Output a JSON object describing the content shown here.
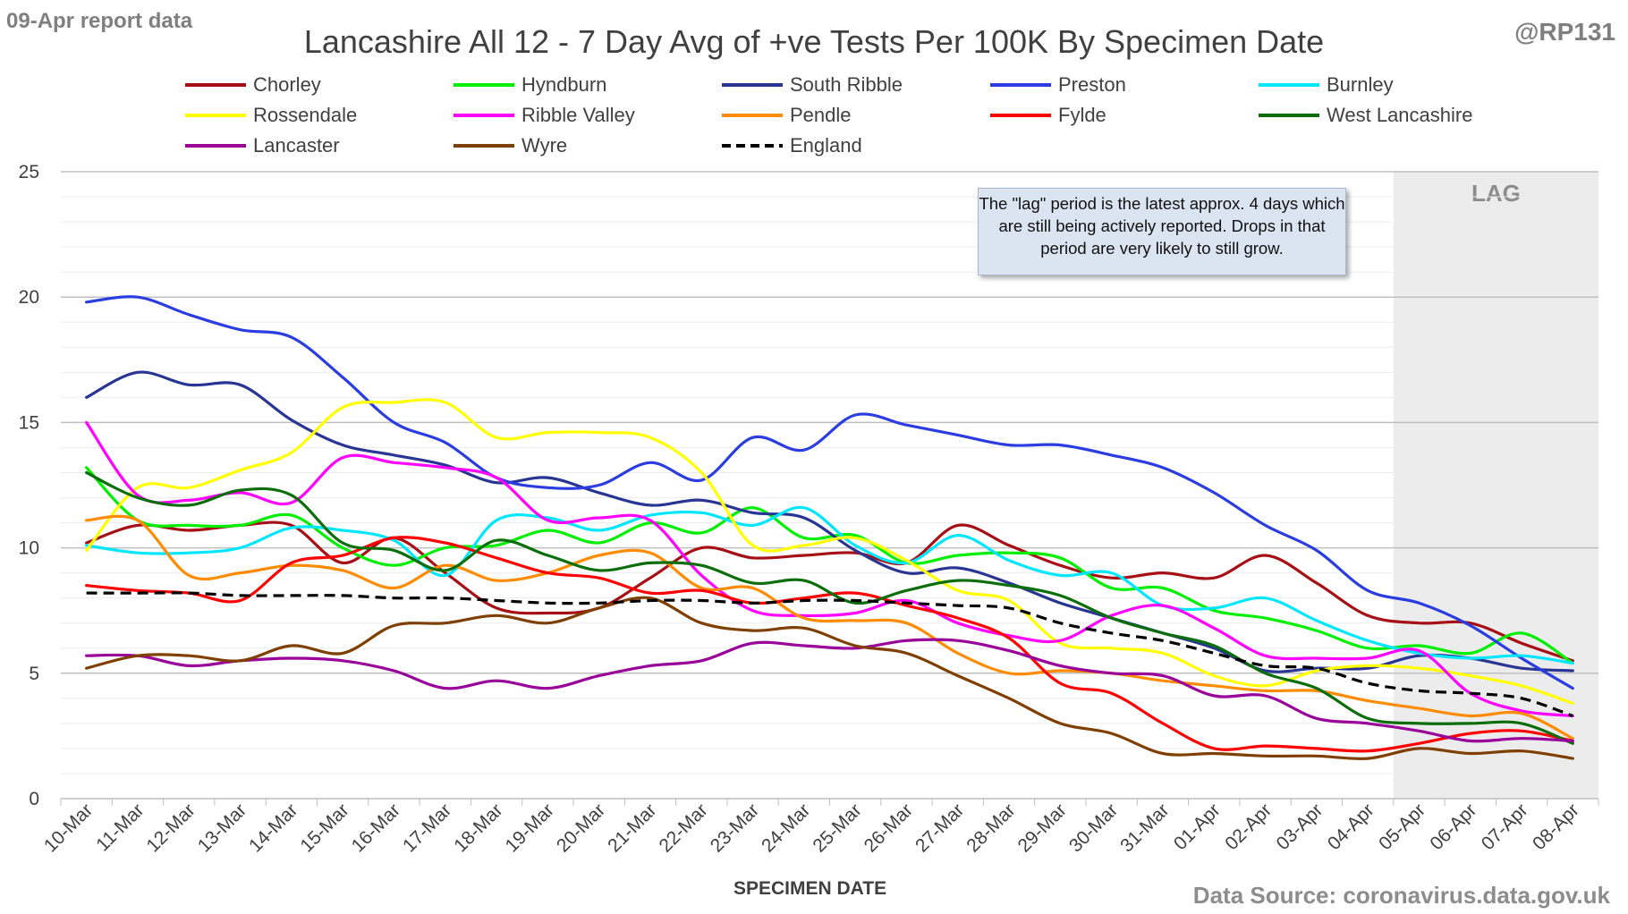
{
  "header": {
    "report_date": "09-Apr report data",
    "handle": "@RP131",
    "title": "Lancashire All 12 - 7 Day Avg of +ve Tests Per 100K By Specimen Date",
    "source": "Data Source: coronavirus.data.gov.uk"
  },
  "annotation": {
    "note": "The \"lag\" period is the latest approx. 4 days which are still being actively reported.  Drops in that period are very likely to still grow.",
    "lag_label": "LAG"
  },
  "chart_data": {
    "type": "line",
    "title": "Lancashire All 12 - 7 Day Avg of +ve Tests Per 100K By Specimen Date",
    "xlabel": "SPECIMEN DATE",
    "ylabel": "",
    "ylim": [
      0,
      25
    ],
    "yticks": [
      0,
      5,
      10,
      15,
      20,
      25
    ],
    "grid": true,
    "legend_position": "top",
    "lag_start": "05-Apr",
    "categories": [
      "10-Mar",
      "11-Mar",
      "12-Mar",
      "13-Mar",
      "14-Mar",
      "15-Mar",
      "16-Mar",
      "17-Mar",
      "18-Mar",
      "19-Mar",
      "20-Mar",
      "21-Mar",
      "22-Mar",
      "23-Mar",
      "24-Mar",
      "25-Mar",
      "26-Mar",
      "27-Mar",
      "28-Mar",
      "29-Mar",
      "30-Mar",
      "31-Mar",
      "01-Apr",
      "02-Apr",
      "03-Apr",
      "04-Apr",
      "05-Apr",
      "06-Apr",
      "07-Apr",
      "08-Apr"
    ],
    "series": [
      {
        "name": "Chorley",
        "color": "#a50f15",
        "dashed": false,
        "values": [
          10.2,
          10.9,
          10.7,
          10.9,
          10.9,
          9.4,
          10.4,
          9.0,
          7.6,
          7.4,
          7.6,
          8.8,
          10.0,
          9.6,
          9.7,
          9.8,
          9.4,
          10.9,
          10.1,
          9.3,
          8.8,
          9.0,
          8.8,
          9.7,
          8.6,
          7.3,
          7.0,
          7.0,
          6.2,
          5.5
        ]
      },
      {
        "name": "Hyndburn",
        "color": "#00ee00",
        "dashed": false,
        "values": [
          13.2,
          11.1,
          10.9,
          10.9,
          11.3,
          10.0,
          9.3,
          10.0,
          10.1,
          10.7,
          10.2,
          11.0,
          10.6,
          11.6,
          10.4,
          10.5,
          9.4,
          9.7,
          9.8,
          9.6,
          8.4,
          8.4,
          7.5,
          7.2,
          6.7,
          6.0,
          6.1,
          5.8,
          6.6,
          5.4
        ]
      },
      {
        "name": "South Ribble",
        "color": "#283593",
        "dashed": false,
        "values": [
          16.0,
          17.0,
          16.5,
          16.5,
          15.1,
          14.1,
          13.7,
          13.3,
          12.6,
          12.8,
          12.2,
          11.7,
          11.9,
          11.4,
          11.2,
          9.9,
          9.0,
          9.2,
          8.6,
          7.8,
          7.2,
          6.6,
          6.0,
          5.1,
          5.2,
          5.2,
          5.7,
          5.6,
          5.2,
          5.1
        ]
      },
      {
        "name": "Preston",
        "color": "#2b3de0",
        "dashed": false,
        "values": [
          19.8,
          20.0,
          19.3,
          18.7,
          18.4,
          16.8,
          15.0,
          14.2,
          12.8,
          12.4,
          12.5,
          13.4,
          12.7,
          14.4,
          13.9,
          15.3,
          14.9,
          14.5,
          14.1,
          14.1,
          13.7,
          13.2,
          12.2,
          10.9,
          9.9,
          8.3,
          7.8,
          6.9,
          5.6,
          4.4
        ]
      },
      {
        "name": "Burnley",
        "color": "#00e6ff",
        "dashed": false,
        "values": [
          10.1,
          9.8,
          9.8,
          10.0,
          10.8,
          10.7,
          10.3,
          8.9,
          11.1,
          11.2,
          10.7,
          11.3,
          11.4,
          10.9,
          11.6,
          10.1,
          9.4,
          10.5,
          9.5,
          8.9,
          9.0,
          7.7,
          7.6,
          8.0,
          7.1,
          6.3,
          5.8,
          5.6,
          5.7,
          5.4
        ]
      },
      {
        "name": "Rossendale",
        "color": "#ffff00",
        "dashed": false,
        "values": [
          9.9,
          12.4,
          12.4,
          13.1,
          13.8,
          15.6,
          15.8,
          15.8,
          14.4,
          14.6,
          14.6,
          14.4,
          13.0,
          10.1,
          10.1,
          10.4,
          9.5,
          8.3,
          7.9,
          6.2,
          6.0,
          5.8,
          4.9,
          4.5,
          5.1,
          5.3,
          5.2,
          4.9,
          4.5,
          3.8
        ]
      },
      {
        "name": "Ribble Valley",
        "color": "#ff00ff",
        "dashed": false,
        "values": [
          15.0,
          12.1,
          11.9,
          12.2,
          11.8,
          13.6,
          13.4,
          13.2,
          12.8,
          11.1,
          11.2,
          11.1,
          8.9,
          7.5,
          7.3,
          7.4,
          7.9,
          7.0,
          6.5,
          6.3,
          7.3,
          7.7,
          6.8,
          5.7,
          5.6,
          5.6,
          5.9,
          4.2,
          3.5,
          3.3
        ]
      },
      {
        "name": "Pendle",
        "color": "#ff8c00",
        "dashed": false,
        "values": [
          11.1,
          11.1,
          8.9,
          9.0,
          9.3,
          9.1,
          8.4,
          9.3,
          8.7,
          9.0,
          9.7,
          9.8,
          8.4,
          8.4,
          7.2,
          7.1,
          7.0,
          5.8,
          5.0,
          5.1,
          5.0,
          4.7,
          4.5,
          4.3,
          4.3,
          3.9,
          3.6,
          3.3,
          3.4,
          2.4
        ]
      },
      {
        "name": "Fylde",
        "color": "#ff0000",
        "dashed": false,
        "values": [
          8.5,
          8.3,
          8.2,
          7.9,
          9.4,
          9.7,
          10.4,
          10.2,
          9.6,
          9.0,
          8.8,
          8.2,
          8.3,
          7.8,
          8.0,
          8.2,
          7.7,
          7.2,
          6.4,
          4.6,
          4.2,
          3.0,
          2.0,
          2.1,
          2.0,
          1.9,
          2.2,
          2.6,
          2.7,
          2.3
        ]
      },
      {
        "name": "West Lancashire",
        "color": "#0b6e0b",
        "dashed": false,
        "values": [
          13.0,
          12.0,
          11.7,
          12.3,
          12.1,
          10.2,
          9.9,
          9.1,
          10.3,
          9.7,
          9.1,
          9.4,
          9.3,
          8.6,
          8.7,
          7.8,
          8.3,
          8.7,
          8.5,
          8.1,
          7.2,
          6.6,
          6.1,
          5.0,
          4.4,
          3.2,
          3.0,
          3.0,
          3.0,
          2.2
        ]
      },
      {
        "name": "Lancaster",
        "color": "#990099",
        "dashed": false,
        "values": [
          5.7,
          5.7,
          5.3,
          5.5,
          5.6,
          5.5,
          5.1,
          4.4,
          4.7,
          4.4,
          4.9,
          5.3,
          5.5,
          6.2,
          6.1,
          6.0,
          6.3,
          6.3,
          5.9,
          5.3,
          5.0,
          4.9,
          4.1,
          4.1,
          3.2,
          3.0,
          2.7,
          2.3,
          2.4,
          2.3
        ]
      },
      {
        "name": "Wyre",
        "color": "#7f3f00",
        "dashed": false,
        "values": [
          5.2,
          5.7,
          5.7,
          5.5,
          6.1,
          5.8,
          6.9,
          7.0,
          7.3,
          7.0,
          7.6,
          8.0,
          7.0,
          6.7,
          6.8,
          6.1,
          5.8,
          4.9,
          4.0,
          3.0,
          2.6,
          1.8,
          1.8,
          1.7,
          1.7,
          1.6,
          2.0,
          1.8,
          1.9,
          1.6
        ]
      },
      {
        "name": "England",
        "color": "#000000",
        "dashed": true,
        "values": [
          8.2,
          8.2,
          8.2,
          8.1,
          8.1,
          8.1,
          8.0,
          8.0,
          7.9,
          7.8,
          7.8,
          7.9,
          7.9,
          7.8,
          7.9,
          7.9,
          7.8,
          7.7,
          7.6,
          7.0,
          6.6,
          6.3,
          5.8,
          5.3,
          5.2,
          4.6,
          4.3,
          4.2,
          4.0,
          3.3
        ]
      }
    ]
  }
}
